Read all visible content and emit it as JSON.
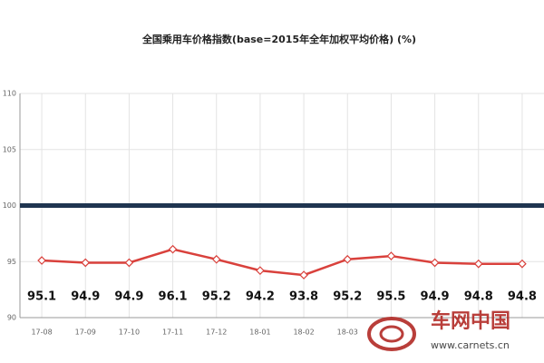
{
  "chart_data": {
    "type": "line",
    "title": "全国乘用车价格指数(base=2015年全年加权平均价格) (%)",
    "categories": [
      "17-08",
      "17-09",
      "17-10",
      "17-11",
      "17-12",
      "18-01",
      "18-02",
      "18-03",
      null,
      null,
      null,
      null
    ],
    "values": [
      95.1,
      94.9,
      94.9,
      96.1,
      95.2,
      94.2,
      93.8,
      95.2,
      95.5,
      94.9,
      94.8,
      94.8
    ],
    "color": "#d9413c",
    "ylim": [
      90,
      110
    ],
    "yticks": [
      90,
      95,
      100,
      105,
      110
    ],
    "grid": true,
    "reference_line": {
      "value": 100,
      "color": "#1f3550"
    },
    "watermark": {
      "name": "车网中国",
      "url": "www.carnets.cn"
    }
  }
}
